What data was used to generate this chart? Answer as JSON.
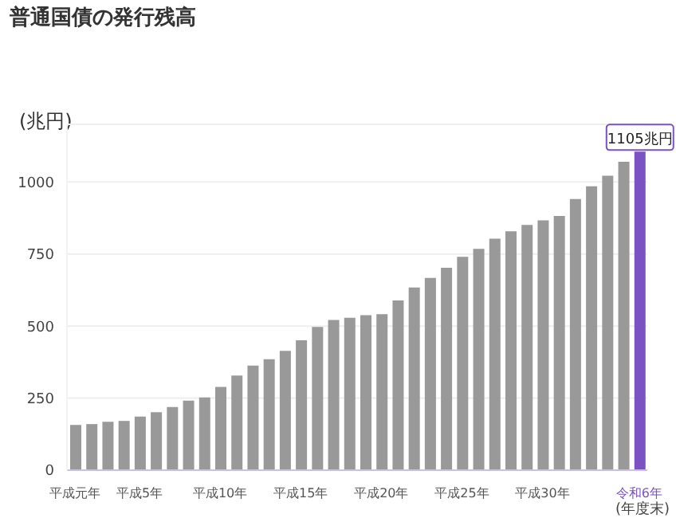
{
  "chart_data": {
    "type": "bar",
    "title": "普通国債の発行残高",
    "ylabel": "(兆円)",
    "annotations": [
      "(年度末)"
    ],
    "categories": [
      "平成元年",
      null,
      null,
      null,
      "平成5年",
      null,
      null,
      null,
      null,
      "平成10年",
      null,
      null,
      null,
      null,
      "平成15年",
      null,
      null,
      null,
      null,
      "平成20年",
      null,
      null,
      null,
      null,
      "平成25年",
      null,
      null,
      null,
      null,
      "平成30年",
      null,
      null,
      null,
      null,
      null,
      "令和6年"
    ],
    "values": [
      157,
      160,
      168,
      171,
      186,
      201,
      219,
      241,
      252,
      289,
      328,
      363,
      385,
      414,
      451,
      497,
      521,
      529,
      538,
      541,
      589,
      634,
      667,
      702,
      740,
      768,
      803,
      829,
      851,
      867,
      882,
      941,
      985,
      1022,
      1070,
      1105
    ],
    "colors": [
      "#999999",
      "#999999",
      "#999999",
      "#999999",
      "#999999",
      "#999999",
      "#999999",
      "#999999",
      "#999999",
      "#999999",
      "#999999",
      "#999999",
      "#999999",
      "#999999",
      "#999999",
      "#999999",
      "#999999",
      "#999999",
      "#999999",
      "#999999",
      "#999999",
      "#999999",
      "#999999",
      "#999999",
      "#999999",
      "#999999",
      "#999999",
      "#999999",
      "#999999",
      "#999999",
      "#999999",
      "#999999",
      "#999999",
      "#999999",
      "#999999",
      "#7b52c1"
    ],
    "value_labels": [
      null,
      null,
      null,
      null,
      null,
      null,
      null,
      null,
      null,
      null,
      null,
      null,
      null,
      null,
      null,
      null,
      null,
      null,
      null,
      null,
      null,
      null,
      null,
      null,
      null,
      null,
      null,
      null,
      null,
      null,
      null,
      null,
      null,
      null,
      null,
      "1105兆円"
    ],
    "ylim": [
      0,
      1200
    ],
    "yticks": [
      0,
      250,
      500,
      750,
      1000
    ],
    "grid": "y"
  }
}
